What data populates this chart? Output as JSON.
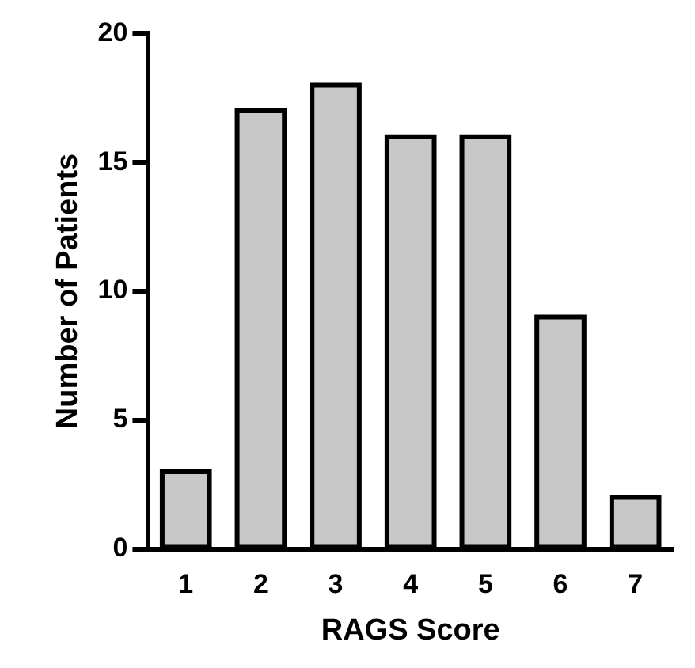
{
  "chart_data": {
    "type": "bar",
    "xlabel": "RAGS Score",
    "ylabel": "Number of Patients",
    "categories": [
      "1",
      "2",
      "3",
      "4",
      "5",
      "6",
      "7"
    ],
    "values": [
      3,
      17,
      18,
      16,
      16,
      9,
      2
    ],
    "color": "#c8c8c8",
    "ylim": [
      0,
      20
    ],
    "yticks": [
      0,
      5,
      10,
      15,
      20
    ],
    "grid": false,
    "legend": false
  }
}
